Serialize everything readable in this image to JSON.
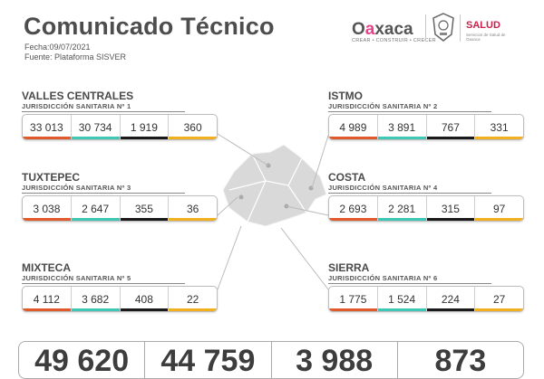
{
  "header": {
    "title": "Comunicado Técnico",
    "fecha": "Fecha:09/07/2021",
    "fuente": "Fuente: Plataforma SISVER"
  },
  "logos": {
    "oaxaca_pre": "O",
    "oaxaca_a": "a",
    "oaxaca_rest": "xaca",
    "oaxaca_tagline": "CREAR • CONSTRUIR • CRECER",
    "salud": "SALUD",
    "salud_sub": "Servicios de Salud de Oaxaca"
  },
  "colors": {
    "red": "#e05a2b",
    "teal": "#3ec7b4",
    "black": "#1a1a1a",
    "yellow": "#f2b01e"
  },
  "regions": [
    {
      "name": "VALLES CENTRALES",
      "jur": "JURISDICCIÓN SANITARIA Nº 1",
      "values": [
        "33 013",
        "30 734",
        "1 919",
        "360"
      ]
    },
    {
      "name": "ISTMO",
      "jur": "JURISDICCIÓN SANITARIA Nº 2",
      "values": [
        "4 989",
        "3 891",
        "767",
        "331"
      ]
    },
    {
      "name": "TUXTEPEC",
      "jur": "JURISDICCIÓN SANITARIA Nº 3",
      "values": [
        "3 038",
        "2 647",
        "355",
        "36"
      ]
    },
    {
      "name": "COSTA",
      "jur": "JURISDICCIÓN SANITARIA Nº 4",
      "values": [
        "2 693",
        "2 281",
        "315",
        "97"
      ]
    },
    {
      "name": "MIXTECA",
      "jur": "JURISDICCIÓN SANITARIA Nº 5",
      "values": [
        "4 112",
        "3 682",
        "408",
        "22"
      ]
    },
    {
      "name": "SIERRA",
      "jur": "JURISDICCIÓN SANITARIA Nº 6",
      "values": [
        "1 775",
        "1 524",
        "224",
        "27"
      ]
    }
  ],
  "totals": [
    "49 620",
    "44 759",
    "3 988",
    "873"
  ]
}
